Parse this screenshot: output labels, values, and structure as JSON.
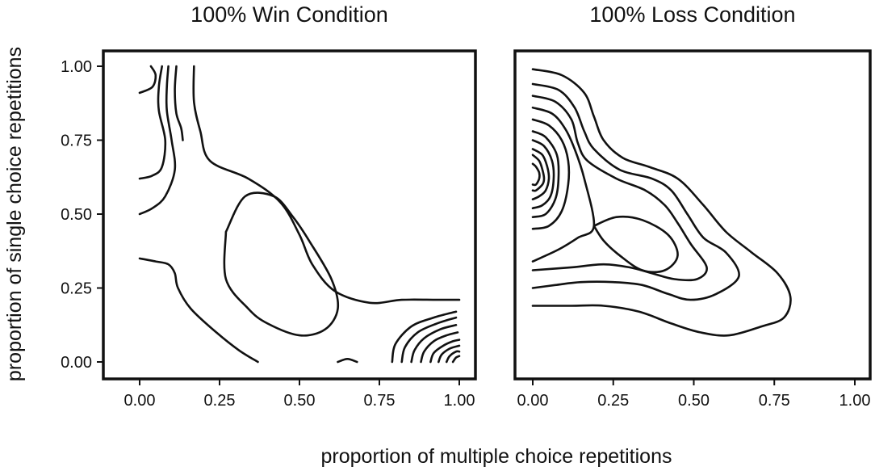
{
  "figure": {
    "xlabel": "proportion of multiple choice repetitions",
    "ylabel": "proportion of single choice repetitions"
  },
  "chart_data": [
    {
      "type": "contour",
      "title": "100% Win Condition",
      "xlim": [
        0,
        1
      ],
      "ylim": [
        0,
        1
      ],
      "xticks": [
        "0.00",
        "0.25",
        "0.50",
        "0.75",
        "1.00"
      ],
      "yticks": [
        "0.00",
        "0.25",
        "0.50",
        "0.75",
        "1.00"
      ],
      "contours": [
        [
          [
            0.0,
            0.91
          ],
          [
            0.04,
            0.93
          ],
          [
            0.05,
            0.97
          ],
          [
            0.035,
            1.0
          ]
        ],
        [
          [
            0.0,
            0.62
          ],
          [
            0.04,
            0.63
          ],
          [
            0.07,
            0.66
          ],
          [
            0.08,
            0.75
          ],
          [
            0.06,
            0.85
          ],
          [
            0.06,
            0.93
          ],
          [
            0.07,
            1.0
          ]
        ],
        [
          [
            0.0,
            0.5
          ],
          [
            0.04,
            0.52
          ],
          [
            0.08,
            0.56
          ],
          [
            0.11,
            0.65
          ],
          [
            0.1,
            0.75
          ],
          [
            0.085,
            0.85
          ],
          [
            0.085,
            0.93
          ],
          [
            0.09,
            1.0
          ]
        ],
        [
          [
            0.115,
            1.0
          ],
          [
            0.11,
            0.92
          ],
          [
            0.115,
            0.84
          ],
          [
            0.13,
            0.79
          ],
          [
            0.135,
            0.75
          ]
        ],
        [
          [
            0.0,
            0.35
          ],
          [
            0.05,
            0.34
          ],
          [
            0.09,
            0.33
          ],
          [
            0.11,
            0.3
          ],
          [
            0.12,
            0.25
          ],
          [
            0.16,
            0.18
          ],
          [
            0.24,
            0.1
          ],
          [
            0.31,
            0.04
          ],
          [
            0.37,
            0.0
          ]
        ],
        [
          [
            1.0,
            0.21
          ],
          [
            0.93,
            0.21
          ],
          [
            0.82,
            0.21
          ],
          [
            0.72,
            0.2
          ],
          [
            0.61,
            0.24
          ],
          [
            0.54,
            0.33
          ],
          [
            0.5,
            0.43
          ],
          [
            0.44,
            0.54
          ],
          [
            0.34,
            0.62
          ],
          [
            0.22,
            0.68
          ],
          [
            0.19,
            0.78
          ],
          [
            0.17,
            0.88
          ],
          [
            0.17,
            1.0
          ]
        ],
        [
          [
            0.27,
            0.44
          ],
          [
            0.33,
            0.56
          ],
          [
            0.42,
            0.56
          ],
          [
            0.48,
            0.49
          ],
          [
            0.53,
            0.41
          ],
          [
            0.6,
            0.28
          ],
          [
            0.62,
            0.18
          ],
          [
            0.58,
            0.11
          ],
          [
            0.5,
            0.09
          ],
          [
            0.4,
            0.13
          ],
          [
            0.34,
            0.18
          ],
          [
            0.27,
            0.28
          ],
          [
            0.27,
            0.44
          ]
        ],
        [
          [
            0.62,
            0.0
          ],
          [
            0.65,
            0.01
          ],
          [
            0.68,
            0.0
          ]
        ],
        [
          [
            0.79,
            0.0
          ],
          [
            0.8,
            0.06
          ],
          [
            0.85,
            0.12
          ],
          [
            0.92,
            0.15
          ],
          [
            0.99,
            0.17
          ]
        ],
        [
          [
            0.82,
            0.0
          ],
          [
            0.83,
            0.05
          ],
          [
            0.87,
            0.1
          ],
          [
            0.93,
            0.13
          ],
          [
            0.99,
            0.15
          ]
        ],
        [
          [
            0.85,
            0.0
          ],
          [
            0.86,
            0.04
          ],
          [
            0.89,
            0.08
          ],
          [
            0.94,
            0.11
          ],
          [
            0.99,
            0.125
          ]
        ],
        [
          [
            0.88,
            0.0
          ],
          [
            0.89,
            0.035
          ],
          [
            0.92,
            0.07
          ],
          [
            0.96,
            0.09
          ],
          [
            0.995,
            0.1
          ]
        ],
        [
          [
            0.91,
            0.0
          ],
          [
            0.92,
            0.03
          ],
          [
            0.95,
            0.055
          ],
          [
            0.98,
            0.07
          ],
          [
            1.0,
            0.075
          ]
        ],
        [
          [
            0.935,
            0.0
          ],
          [
            0.945,
            0.025
          ],
          [
            0.97,
            0.045
          ],
          [
            1.0,
            0.055
          ]
        ],
        [
          [
            0.96,
            0.0
          ],
          [
            0.97,
            0.02
          ],
          [
            0.99,
            0.035
          ],
          [
            1.0,
            0.035
          ]
        ],
        [
          [
            0.98,
            0.0
          ],
          [
            0.99,
            0.015
          ],
          [
            1.0,
            0.02
          ]
        ]
      ]
    },
    {
      "type": "contour",
      "title": "100% Loss Condition",
      "xlim": [
        0,
        1
      ],
      "ylim": [
        0,
        1
      ],
      "xticks": [
        "0.00",
        "0.25",
        "0.50",
        "0.75",
        "1.00"
      ],
      "yticks": [],
      "contours": [
        [
          [
            0.0,
            0.99
          ],
          [
            0.09,
            0.97
          ],
          [
            0.16,
            0.91
          ],
          [
            0.19,
            0.83
          ],
          [
            0.22,
            0.75
          ],
          [
            0.28,
            0.69
          ],
          [
            0.36,
            0.66
          ],
          [
            0.45,
            0.62
          ],
          [
            0.53,
            0.53
          ],
          [
            0.6,
            0.44
          ],
          [
            0.68,
            0.37
          ],
          [
            0.76,
            0.3
          ],
          [
            0.8,
            0.22
          ],
          [
            0.78,
            0.15
          ],
          [
            0.71,
            0.12
          ],
          [
            0.61,
            0.09
          ],
          [
            0.52,
            0.1
          ],
          [
            0.43,
            0.13
          ],
          [
            0.33,
            0.17
          ],
          [
            0.22,
            0.19
          ],
          [
            0.12,
            0.19
          ],
          [
            0.0,
            0.19
          ]
        ],
        [
          [
            0.0,
            0.94
          ],
          [
            0.08,
            0.92
          ],
          [
            0.13,
            0.86
          ],
          [
            0.16,
            0.78
          ],
          [
            0.19,
            0.72
          ],
          [
            0.27,
            0.65
          ],
          [
            0.37,
            0.62
          ],
          [
            0.43,
            0.58
          ],
          [
            0.48,
            0.5
          ],
          [
            0.53,
            0.42
          ],
          [
            0.6,
            0.37
          ],
          [
            0.64,
            0.29
          ],
          [
            0.57,
            0.23
          ],
          [
            0.49,
            0.21
          ],
          [
            0.42,
            0.23
          ],
          [
            0.34,
            0.26
          ],
          [
            0.25,
            0.27
          ],
          [
            0.15,
            0.27
          ],
          [
            0.07,
            0.26
          ],
          [
            0.0,
            0.25
          ]
        ],
        [
          [
            0.0,
            0.9
          ],
          [
            0.07,
            0.88
          ],
          [
            0.12,
            0.82
          ],
          [
            0.14,
            0.74
          ],
          [
            0.17,
            0.68
          ],
          [
            0.26,
            0.62
          ],
          [
            0.35,
            0.58
          ],
          [
            0.41,
            0.53
          ],
          [
            0.45,
            0.47
          ],
          [
            0.49,
            0.4
          ],
          [
            0.54,
            0.32
          ],
          [
            0.51,
            0.28
          ],
          [
            0.44,
            0.28
          ],
          [
            0.37,
            0.3
          ],
          [
            0.3,
            0.32
          ],
          [
            0.22,
            0.33
          ],
          [
            0.12,
            0.32
          ],
          [
            0.0,
            0.31
          ]
        ],
        [
          [
            0.0,
            0.86
          ],
          [
            0.06,
            0.84
          ],
          [
            0.1,
            0.79
          ],
          [
            0.13,
            0.72
          ],
          [
            0.16,
            0.62
          ],
          [
            0.19,
            0.46
          ],
          [
            0.14,
            0.42
          ],
          [
            0.08,
            0.38
          ],
          [
            0.0,
            0.34
          ]
        ],
        [
          [
            0.19,
            0.46
          ],
          [
            0.26,
            0.49
          ],
          [
            0.34,
            0.48
          ],
          [
            0.42,
            0.43
          ],
          [
            0.45,
            0.36
          ],
          [
            0.41,
            0.31
          ],
          [
            0.34,
            0.31
          ],
          [
            0.27,
            0.36
          ],
          [
            0.22,
            0.41
          ],
          [
            0.19,
            0.46
          ]
        ],
        [
          [
            0.0,
            0.82
          ],
          [
            0.05,
            0.8
          ],
          [
            0.09,
            0.75
          ],
          [
            0.11,
            0.68
          ],
          [
            0.11,
            0.6
          ],
          [
            0.09,
            0.51
          ],
          [
            0.05,
            0.46
          ],
          [
            0.0,
            0.45
          ]
        ],
        [
          [
            0.0,
            0.78
          ],
          [
            0.04,
            0.76
          ],
          [
            0.075,
            0.7
          ],
          [
            0.08,
            0.62
          ],
          [
            0.07,
            0.55
          ],
          [
            0.04,
            0.5
          ],
          [
            0.0,
            0.49
          ]
        ],
        [
          [
            0.0,
            0.75
          ],
          [
            0.035,
            0.73
          ],
          [
            0.06,
            0.68
          ],
          [
            0.065,
            0.62
          ],
          [
            0.055,
            0.56
          ],
          [
            0.03,
            0.53
          ],
          [
            0.0,
            0.52
          ]
        ],
        [
          [
            0.0,
            0.72
          ],
          [
            0.03,
            0.7
          ],
          [
            0.045,
            0.66
          ],
          [
            0.05,
            0.62
          ],
          [
            0.04,
            0.58
          ],
          [
            0.02,
            0.56
          ],
          [
            0.0,
            0.55
          ]
        ],
        [
          [
            0.0,
            0.7
          ],
          [
            0.02,
            0.68
          ],
          [
            0.03,
            0.65
          ],
          [
            0.035,
            0.62
          ],
          [
            0.03,
            0.6
          ],
          [
            0.01,
            0.58
          ],
          [
            0.0,
            0.58
          ]
        ],
        [
          [
            0.0,
            0.67
          ],
          [
            0.01,
            0.66
          ],
          [
            0.02,
            0.64
          ],
          [
            0.02,
            0.62
          ],
          [
            0.01,
            0.6
          ],
          [
            0.0,
            0.6
          ]
        ]
      ]
    }
  ]
}
